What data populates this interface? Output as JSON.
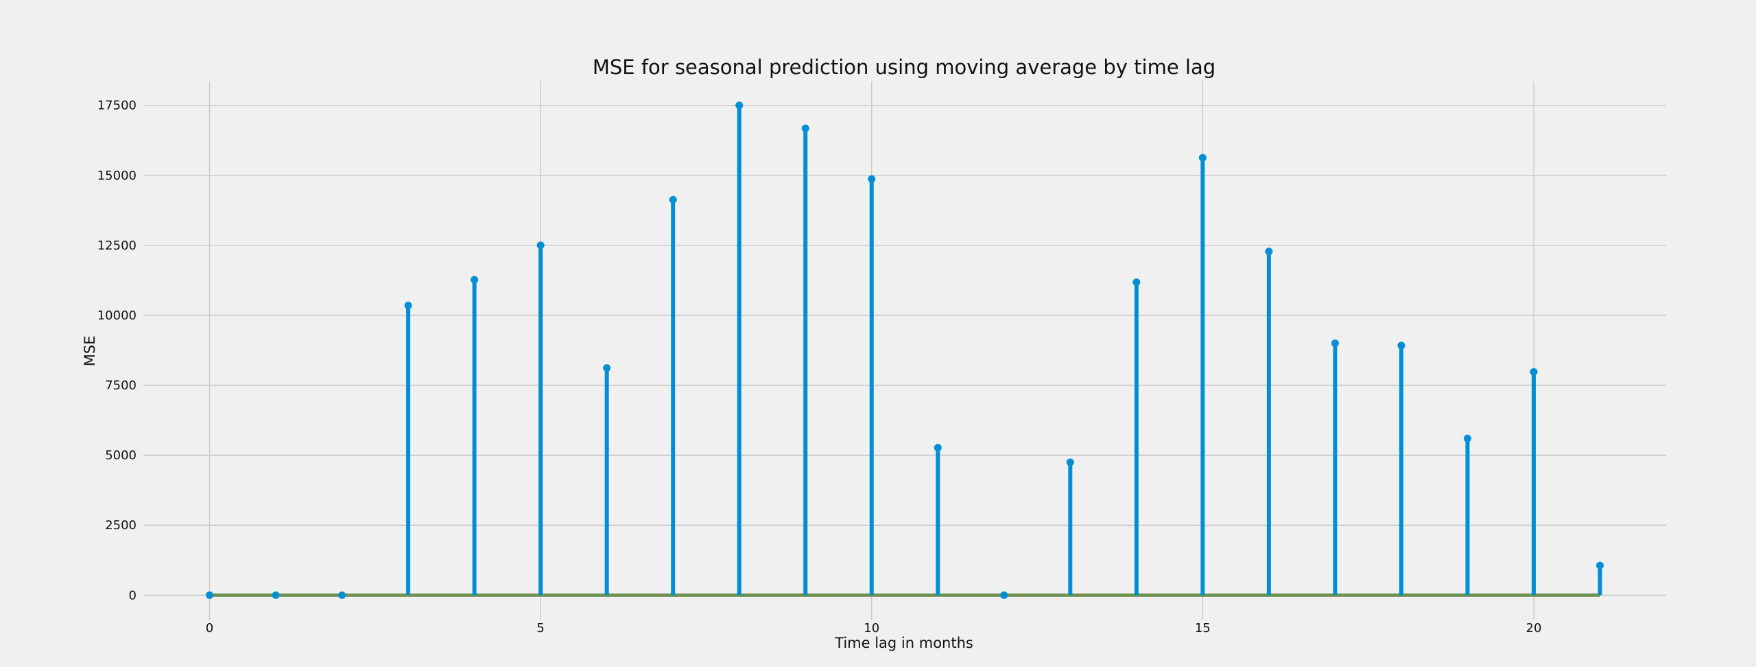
{
  "chart_data": {
    "type": "stem",
    "title": "MSE for seasonal prediction using moving average by time lag",
    "xlabel": "Time lag in months",
    "ylabel": "MSE",
    "xlim": [
      -1.0,
      22.0
    ],
    "ylim": [
      -875,
      18375
    ],
    "xticks": [
      0,
      5,
      10,
      15,
      20
    ],
    "yticks": [
      0,
      2500,
      5000,
      7500,
      10000,
      12500,
      15000,
      17500
    ],
    "grid": true,
    "x": [
      0,
      1,
      2,
      3,
      4,
      5,
      6,
      7,
      8,
      9,
      10,
      11,
      12,
      13,
      14,
      15,
      16,
      17,
      18,
      19,
      20,
      21
    ],
    "series": [
      {
        "values": [
          0,
          0,
          0,
          10350,
          11270,
          12500,
          8120,
          14130,
          17500,
          16680,
          14870,
          5270,
          0,
          4750,
          11180,
          15630,
          12280,
          9000,
          8920,
          5600,
          7980,
          1060
        ]
      }
    ],
    "colors": {
      "background": "#f0f0f0",
      "stem": "#008fd5",
      "baseline": "#6d904f",
      "grid": "#cbcbcb",
      "text": "#111111"
    }
  }
}
